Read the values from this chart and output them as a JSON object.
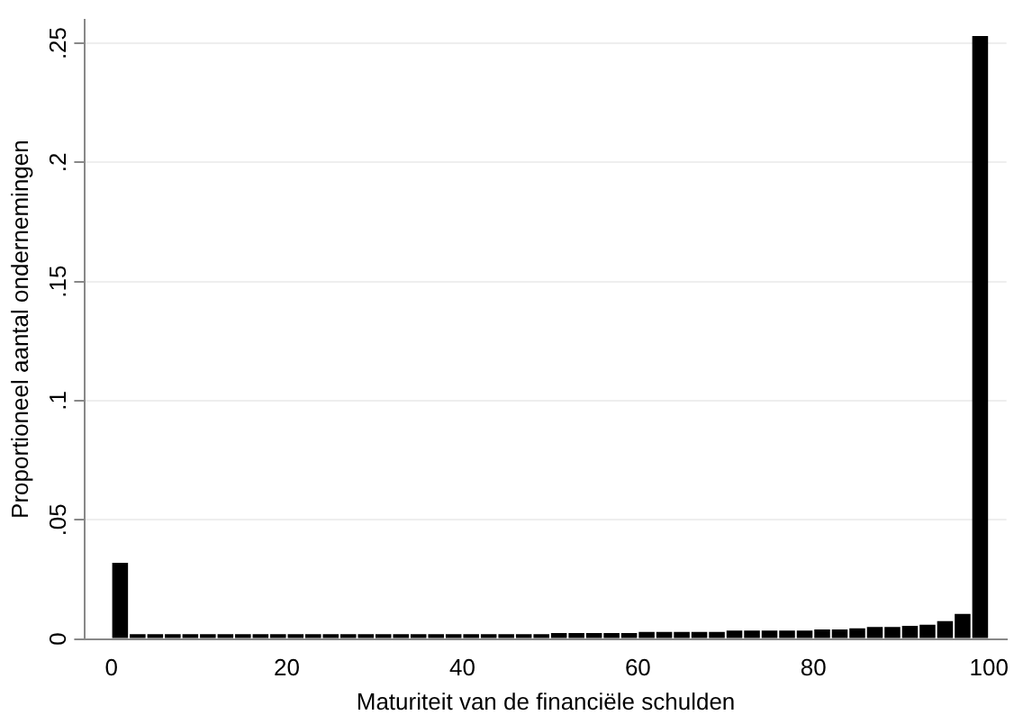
{
  "chart_data": {
    "type": "histogram",
    "xlabel": "Maturiteit van de financiële schulden",
    "ylabel": "Proportioneel aantal ondernemingen",
    "bins": [
      0,
      2,
      4,
      6,
      8,
      10,
      12,
      14,
      16,
      18,
      20,
      22,
      24,
      26,
      28,
      30,
      32,
      34,
      36,
      38,
      40,
      42,
      44,
      46,
      48,
      50,
      52,
      54,
      56,
      58,
      60,
      62,
      64,
      66,
      68,
      70,
      72,
      74,
      76,
      78,
      80,
      82,
      84,
      86,
      88,
      90,
      92,
      94,
      96,
      98,
      100
    ],
    "values": [
      0.032,
      0.002,
      0.002,
      0.002,
      0.002,
      0.002,
      0.002,
      0.002,
      0.002,
      0.002,
      0.002,
      0.002,
      0.002,
      0.002,
      0.002,
      0.002,
      0.002,
      0.002,
      0.002,
      0.002,
      0.002,
      0.002,
      0.002,
      0.002,
      0.002,
      0.0025,
      0.0025,
      0.0025,
      0.0025,
      0.0025,
      0.003,
      0.003,
      0.003,
      0.003,
      0.003,
      0.0035,
      0.0035,
      0.0035,
      0.0035,
      0.0035,
      0.004,
      0.004,
      0.0045,
      0.005,
      0.005,
      0.0055,
      0.006,
      0.0075,
      0.0105,
      0.253
    ],
    "color": "#000000",
    "xlim": [
      -3,
      102
    ],
    "xticks": [
      0,
      20,
      40,
      60,
      80,
      100
    ],
    "ylim": [
      0,
      0.26
    ],
    "yticks": [
      0,
      {
        "value": 0.05,
        "label": ".05"
      },
      {
        "value": 0.1,
        "label": ".1"
      },
      {
        "value": 0.15,
        "label": ".15"
      },
      {
        "value": 0.2,
        "label": ".2"
      },
      {
        "value": 0.25,
        "label": ".25"
      }
    ],
    "grid": "y"
  }
}
